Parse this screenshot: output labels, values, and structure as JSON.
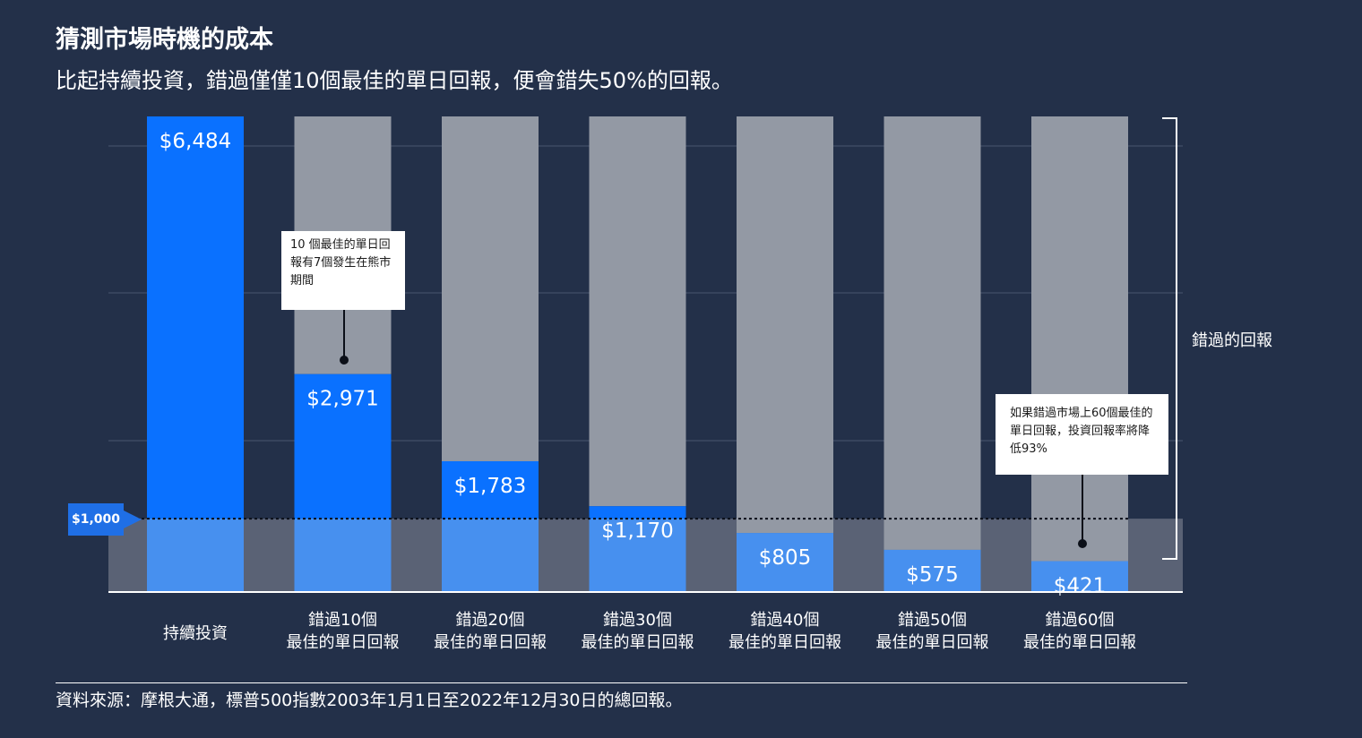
{
  "title": "猜測市場時機的成本",
  "subtitle": "比起持續投資，錯過僅僅10個最佳的單日回報，便會錯失50%的回報。",
  "chart_data": {
    "type": "bar",
    "categories": [
      [
        "持續投資"
      ],
      [
        "錯過10個",
        "最佳的單日回報"
      ],
      [
        "錯過20個",
        "最佳的單日回報"
      ],
      [
        "錯過30個",
        "最佳的單日回報"
      ],
      [
        "錯過40個",
        "最佳的單日回報"
      ],
      [
        "錯過50個",
        "最佳的單日回報"
      ],
      [
        "錯過60個",
        "最佳的單日回報"
      ]
    ],
    "values": [
      6484,
      2971,
      1783,
      1170,
      805,
      575,
      421
    ],
    "value_labels": [
      "$6,484",
      "$2,971",
      "$1,783",
      "$1,170",
      "$805",
      "$575",
      "$421"
    ],
    "reference_value": 6484,
    "baseline_value": 1000,
    "baseline_label": "$1,000",
    "missed_returns_label": "錯過的回報",
    "ylim": [
      0,
      6484
    ],
    "grid": true
  },
  "annotations": {
    "note1": "10 個最佳的單日回報有7個發生在熊市期間",
    "note2": "如果錯過市場上60個最佳的單日回報，投資回報率將降低93%"
  },
  "source": "資料來源：摩根大通，標普500指數2003年1月1日至2022年12月30日的總回報。",
  "colors": {
    "background": "#233049",
    "bar_blue": "#0a71ff",
    "bar_blue_light": "#4790ef",
    "bar_gray": "#9399a4",
    "band": "#5a6275"
  }
}
